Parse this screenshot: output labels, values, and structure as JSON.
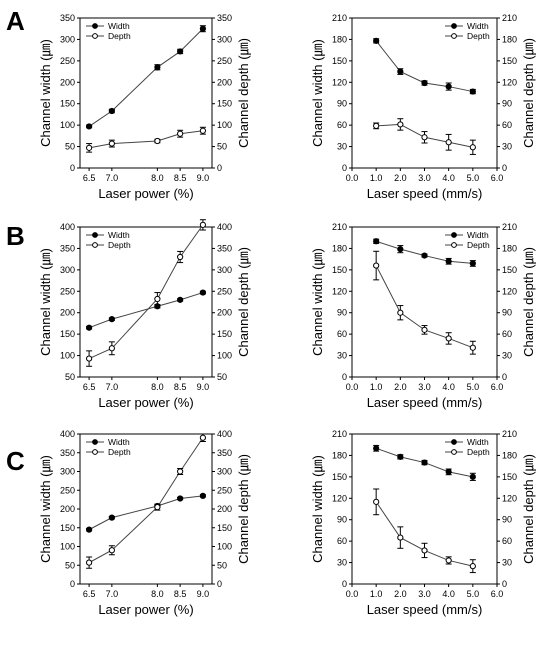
{
  "panels": [
    {
      "letter": "A",
      "charts": [
        {
          "type": "line",
          "xlabel": "Laser power (%)",
          "ylabel": "Channel width (㎛)",
          "y2label": "Channel depth (㎛)",
          "xlim": [
            6.3,
            9.2
          ],
          "xticks": [
            6.5,
            7.0,
            8.0,
            8.5,
            9.0
          ],
          "ylim": [
            0,
            350
          ],
          "yticks": [
            0,
            50,
            100,
            150,
            200,
            250,
            300,
            350
          ],
          "y2lim": [
            0,
            350
          ],
          "y2ticks": [
            0,
            50,
            100,
            150,
            200,
            250,
            300,
            350
          ],
          "legend": "top-left",
          "series": [
            {
              "name": "Width",
              "marker": "filled",
              "axis": "left",
              "x": [
                6.5,
                7.0,
                8.0,
                8.5,
                9.0
              ],
              "values": [
                97,
                133,
                235,
                272,
                325
              ],
              "err": [
                3,
                4,
                6,
                5,
                7
              ]
            },
            {
              "name": "Depth",
              "marker": "open",
              "axis": "left",
              "x": [
                6.5,
                7.0,
                8.0,
                8.5,
                9.0
              ],
              "values": [
                47,
                57,
                63,
                80,
                87
              ],
              "err": [
                10,
                8,
                4,
                8,
                8
              ]
            }
          ]
        },
        {
          "type": "line",
          "xlabel": "Laser speed (mm/s)",
          "ylabel": "Channel width (㎛)",
          "y2label": "Channel depth (㎛)",
          "xlim": [
            0,
            6
          ],
          "xticks": [
            0.0,
            1.0,
            2.0,
            3.0,
            4.0,
            5.0,
            6.0
          ],
          "ylim": [
            0,
            210
          ],
          "yticks": [
            0,
            30,
            60,
            90,
            120,
            150,
            180,
            210
          ],
          "y2lim": [
            0,
            210
          ],
          "y2ticks": [
            0,
            30,
            60,
            90,
            120,
            150,
            180,
            210
          ],
          "legend": "top-right",
          "series": [
            {
              "name": "Width",
              "marker": "filled",
              "axis": "left",
              "x": [
                1,
                2,
                3,
                4,
                5
              ],
              "values": [
                178,
                135,
                119,
                114,
                107
              ],
              "err": [
                3,
                4,
                3,
                5,
                3
              ]
            },
            {
              "name": "Depth",
              "marker": "open",
              "axis": "left",
              "x": [
                1,
                2,
                3,
                4,
                5
              ],
              "values": [
                59,
                61,
                43,
                36,
                29
              ],
              "err": [
                4,
                8,
                8,
                11,
                10
              ]
            }
          ]
        }
      ]
    },
    {
      "letter": "B",
      "charts": [
        {
          "type": "line",
          "xlabel": "Laser power (%)",
          "ylabel": "Channel width (㎛)",
          "y2label": "Channel depth (㎛)",
          "xlim": [
            6.3,
            9.2
          ],
          "xticks": [
            6.5,
            7.0,
            8.0,
            8.5,
            9.0
          ],
          "ylim": [
            50,
            400
          ],
          "yticks": [
            50,
            100,
            150,
            200,
            250,
            300,
            350,
            400
          ],
          "y2lim": [
            50,
            400
          ],
          "y2ticks": [
            50,
            100,
            150,
            200,
            250,
            300,
            350,
            400
          ],
          "legend": "top-left",
          "series": [
            {
              "name": "Width",
              "marker": "filled",
              "axis": "left",
              "x": [
                6.5,
                7.0,
                8.0,
                8.5,
                9.0
              ],
              "values": [
                165,
                185,
                215,
                230,
                247
              ],
              "err": [
                3,
                3,
                4,
                3,
                3
              ]
            },
            {
              "name": "Depth",
              "marker": "open",
              "axis": "right",
              "x": [
                6.5,
                7.0,
                8.0,
                8.5,
                9.0
              ],
              "values": [
                93,
                117,
                232,
                330,
                405
              ],
              "err": [
                18,
                15,
                15,
                13,
                12
              ]
            }
          ]
        },
        {
          "type": "line",
          "xlabel": "Laser speed (mm/s)",
          "ylabel": "Channel width (㎛)",
          "y2label": "Channel depth (㎛)",
          "xlim": [
            0,
            6
          ],
          "xticks": [
            0.0,
            1.0,
            2.0,
            3.0,
            4.0,
            5.0,
            6.0
          ],
          "ylim": [
            0,
            210
          ],
          "yticks": [
            0,
            30,
            60,
            90,
            120,
            150,
            180,
            210
          ],
          "y2lim": [
            0,
            210
          ],
          "y2ticks": [
            0,
            30,
            60,
            90,
            120,
            150,
            180,
            210
          ],
          "legend": "top-right",
          "series": [
            {
              "name": "Width",
              "marker": "filled",
              "axis": "left",
              "x": [
                1,
                2,
                3,
                4,
                5
              ],
              "values": [
                190,
                179,
                170,
                162,
                159
              ],
              "err": [
                3,
                5,
                2,
                4,
                4
              ]
            },
            {
              "name": "Depth",
              "marker": "open",
              "axis": "right",
              "x": [
                1,
                2,
                3,
                4,
                5
              ],
              "values": [
                156,
                90,
                66,
                54,
                41
              ],
              "err": [
                20,
                10,
                6,
                8,
                9
              ]
            }
          ]
        }
      ]
    },
    {
      "letter": "C",
      "charts": [
        {
          "type": "line",
          "xlabel": "Laser power (%)",
          "ylabel": "Channel width (㎛)",
          "y2label": "Channel depth (㎛)",
          "xlim": [
            6.3,
            9.2
          ],
          "xticks": [
            6.5,
            7.0,
            8.0,
            8.5,
            9.0
          ],
          "ylim": [
            0,
            400
          ],
          "yticks": [
            0,
            50,
            100,
            150,
            200,
            250,
            300,
            350,
            400
          ],
          "y2lim": [
            0,
            400
          ],
          "y2ticks": [
            0,
            50,
            100,
            150,
            200,
            250,
            300,
            350,
            400
          ],
          "legend": "top-left",
          "series": [
            {
              "name": "Width",
              "marker": "filled",
              "axis": "left",
              "x": [
                6.5,
                7.0,
                8.0,
                8.5,
                9.0
              ],
              "values": [
                145,
                177,
                208,
                228,
                235
              ],
              "err": [
                3,
                3,
                4,
                3,
                3
              ]
            },
            {
              "name": "Depth",
              "marker": "open",
              "axis": "right",
              "x": [
                6.5,
                7.0,
                8.0,
                8.5,
                9.0
              ],
              "values": [
                57,
                90,
                205,
                300,
                390
              ],
              "err": [
                15,
                12,
                8,
                8,
                10
              ]
            }
          ]
        },
        {
          "type": "line",
          "xlabel": "Laser speed (mm/s)",
          "ylabel": "Channel width (㎛)",
          "y2label": "Channel depth (㎛)",
          "xlim": [
            0,
            6
          ],
          "xticks": [
            0.0,
            1.0,
            2.0,
            3.0,
            4.0,
            5.0,
            6.0
          ],
          "ylim": [
            0,
            210
          ],
          "yticks": [
            0,
            30,
            60,
            90,
            120,
            150,
            180,
            210
          ],
          "y2lim": [
            0,
            210
          ],
          "y2ticks": [
            0,
            30,
            60,
            90,
            120,
            150,
            180,
            210
          ],
          "legend": "top-right",
          "series": [
            {
              "name": "Width",
              "marker": "filled",
              "axis": "left",
              "x": [
                1,
                2,
                3,
                4,
                5
              ],
              "values": [
                190,
                178,
                170,
                157,
                150
              ],
              "err": [
                4,
                3,
                3,
                4,
                5
              ]
            },
            {
              "name": "Depth",
              "marker": "open",
              "axis": "right",
              "x": [
                1,
                2,
                3,
                4,
                5
              ],
              "values": [
                115,
                65,
                47,
                33,
                25
              ],
              "err": [
                18,
                15,
                10,
                5,
                9
              ]
            }
          ]
        }
      ]
    }
  ]
}
